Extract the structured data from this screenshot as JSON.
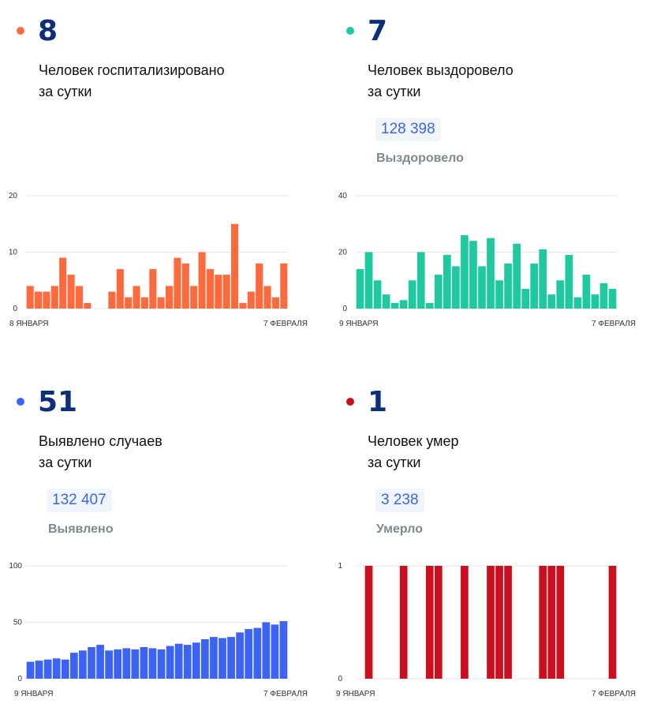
{
  "colors": {
    "hospitalized": "#ff6a3d",
    "recovered": "#1ec9a0",
    "cases": "#3d63f5",
    "deaths": "#cc0f1e",
    "number": "#0d2e7a"
  },
  "panels": [
    {
      "key": "hospitalized",
      "number": "8",
      "caption_line1": "Человек госпитализировано",
      "caption_line2": "за сутки",
      "total": "",
      "total_label": ""
    },
    {
      "key": "recovered",
      "number": "7",
      "caption_line1": "Человек выздоровело",
      "caption_line2": "за сутки",
      "total": "128 398",
      "total_label": "Выздоровело"
    },
    {
      "key": "cases",
      "number": "51",
      "caption_line1": "Выявлено случаев",
      "caption_line2": "за сутки",
      "total": "132 407",
      "total_label": "Выявлено"
    },
    {
      "key": "deaths",
      "number": "1",
      "caption_line1": "Человек умер",
      "caption_line2": "за сутки",
      "total": "3 238",
      "total_label": "Умерло"
    }
  ],
  "chart_data": [
    {
      "type": "bar",
      "series_key": "hospitalized",
      "x_start_label": "8 ЯНВАРЯ",
      "x_end_label": "7 ФЕВРАЛЯ",
      "yticks": [
        0,
        10,
        20
      ],
      "ylim": [
        0,
        20
      ],
      "values": [
        4,
        3,
        3,
        4,
        9,
        6,
        4,
        1,
        0,
        0,
        3,
        7,
        2,
        4,
        2,
        7,
        2,
        4,
        9,
        8,
        4,
        10,
        7,
        6,
        6,
        15,
        1,
        3,
        8,
        4,
        2,
        8
      ]
    },
    {
      "type": "bar",
      "series_key": "recovered",
      "x_start_label": "9 ЯНВАРЯ",
      "x_end_label": "7 ФЕВРАЛЯ",
      "yticks": [
        0,
        20,
        40
      ],
      "ylim": [
        0,
        40
      ],
      "values": [
        14,
        20,
        10,
        5,
        2,
        3,
        10,
        20,
        2,
        12,
        19,
        15,
        26,
        24,
        15,
        25,
        10,
        16,
        23,
        7,
        16,
        21,
        5,
        10,
        19,
        4,
        12,
        5,
        9,
        7
      ]
    },
    {
      "type": "bar",
      "series_key": "cases",
      "x_start_label": "9 ЯНВАРЯ",
      "x_end_label": "7 ФЕВРАЛЯ",
      "yticks": [
        0,
        50,
        100
      ],
      "ylim": [
        0,
        100
      ],
      "values": [
        15,
        16,
        17,
        18,
        17,
        23,
        25,
        28,
        30,
        25,
        26,
        27,
        26,
        28,
        27,
        26,
        29,
        31,
        30,
        32,
        35,
        37,
        36,
        37,
        41,
        44,
        45,
        50,
        48,
        51
      ]
    },
    {
      "type": "bar",
      "series_key": "deaths",
      "x_start_label": "9 ЯНВАРЯ",
      "x_end_label": "7 ФЕВРАЛЯ",
      "yticks": [
        0,
        1
      ],
      "ylim": [
        0,
        1
      ],
      "values": [
        0,
        1,
        0,
        0,
        0,
        1,
        0,
        0,
        1,
        1,
        0,
        0,
        1,
        0,
        0,
        1,
        1,
        1,
        0,
        0,
        0,
        1,
        1,
        1,
        0,
        0,
        0,
        0,
        0,
        1
      ]
    }
  ]
}
